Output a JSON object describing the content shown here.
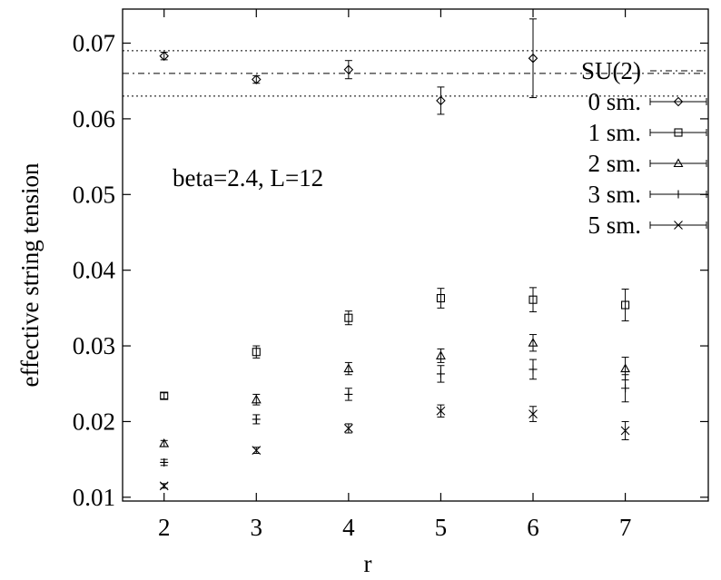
{
  "chart_data": {
    "type": "scatter",
    "title": "",
    "xlabel": "r",
    "ylabel": "effective string tension",
    "xlim": [
      1.55,
      7.9
    ],
    "ylim": [
      0.0095,
      0.0745
    ],
    "xticks": [
      2,
      3,
      4,
      5,
      6,
      7
    ],
    "yticks": [
      0.01,
      0.02,
      0.03,
      0.04,
      0.05,
      0.06,
      0.07
    ],
    "ytick_labels": [
      "0.01",
      "0.02",
      "0.03",
      "0.04",
      "0.05",
      "0.06",
      "0.07"
    ],
    "grid": false,
    "legend_position": "top-right",
    "annotation": "beta=2.4, L=12",
    "reference_lines": [
      {
        "name": "SU(2)",
        "y": 0.066,
        "style": "dash-dot"
      },
      {
        "y": 0.069,
        "style": "dotted"
      },
      {
        "y": 0.063,
        "style": "dotted"
      }
    ],
    "series": [
      {
        "name": "0 sm.",
        "marker": "diamond",
        "points": [
          {
            "x": 2,
            "y": 0.0683,
            "err": 0.0005
          },
          {
            "x": 3,
            "y": 0.0652,
            "err": 0.0005
          },
          {
            "x": 4,
            "y": 0.0665,
            "err": 0.0012
          },
          {
            "x": 5,
            "y": 0.0624,
            "err": 0.0018
          },
          {
            "x": 6,
            "y": 0.068,
            "err": 0.0052
          }
        ]
      },
      {
        "name": "1 sm.",
        "marker": "square",
        "points": [
          {
            "x": 2,
            "y": 0.0234,
            "err": 0.0004
          },
          {
            "x": 3,
            "y": 0.0292,
            "err": 0.0008
          },
          {
            "x": 4,
            "y": 0.0337,
            "err": 0.0009
          },
          {
            "x": 5,
            "y": 0.0363,
            "err": 0.0013
          },
          {
            "x": 6,
            "y": 0.0361,
            "err": 0.0016
          },
          {
            "x": 7,
            "y": 0.0354,
            "err": 0.0021
          }
        ]
      },
      {
        "name": "2 sm.",
        "marker": "triangle",
        "points": [
          {
            "x": 2,
            "y": 0.0171,
            "err": 0.0004
          },
          {
            "x": 3,
            "y": 0.0229,
            "err": 0.0007
          },
          {
            "x": 4,
            "y": 0.027,
            "err": 0.0008
          },
          {
            "x": 5,
            "y": 0.0287,
            "err": 0.0009
          },
          {
            "x": 6,
            "y": 0.0304,
            "err": 0.0011
          },
          {
            "x": 7,
            "y": 0.027,
            "err": 0.0015
          }
        ]
      },
      {
        "name": "3 sm.",
        "marker": "plus",
        "points": [
          {
            "x": 2,
            "y": 0.0146,
            "err": 0.0004
          },
          {
            "x": 3,
            "y": 0.0203,
            "err": 0.0006
          },
          {
            "x": 4,
            "y": 0.0236,
            "err": 0.0008
          },
          {
            "x": 5,
            "y": 0.0263,
            "err": 0.0011
          },
          {
            "x": 6,
            "y": 0.0269,
            "err": 0.0013
          },
          {
            "x": 7,
            "y": 0.0244,
            "err": 0.0018
          }
        ]
      },
      {
        "name": "5 sm.",
        "marker": "cross",
        "points": [
          {
            "x": 2,
            "y": 0.0115,
            "err": 0.0003
          },
          {
            "x": 3,
            "y": 0.0162,
            "err": 0.0004
          },
          {
            "x": 4,
            "y": 0.0191,
            "err": 0.0006
          },
          {
            "x": 5,
            "y": 0.0214,
            "err": 0.0008
          },
          {
            "x": 6,
            "y": 0.021,
            "err": 0.001
          },
          {
            "x": 7,
            "y": 0.0188,
            "err": 0.0012
          }
        ]
      }
    ]
  }
}
